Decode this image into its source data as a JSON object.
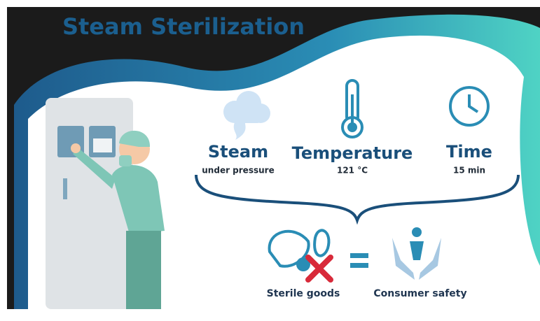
{
  "header": {
    "title": "Steam Sterilization"
  },
  "factors": [
    {
      "label": "Steam",
      "detail": "under pressure"
    },
    {
      "label": "Temperature",
      "detail": "121 °C"
    },
    {
      "label": "Time",
      "detail": "15 min"
    }
  ],
  "result": {
    "left": "Sterile goods",
    "right": "Consumer safety"
  }
}
